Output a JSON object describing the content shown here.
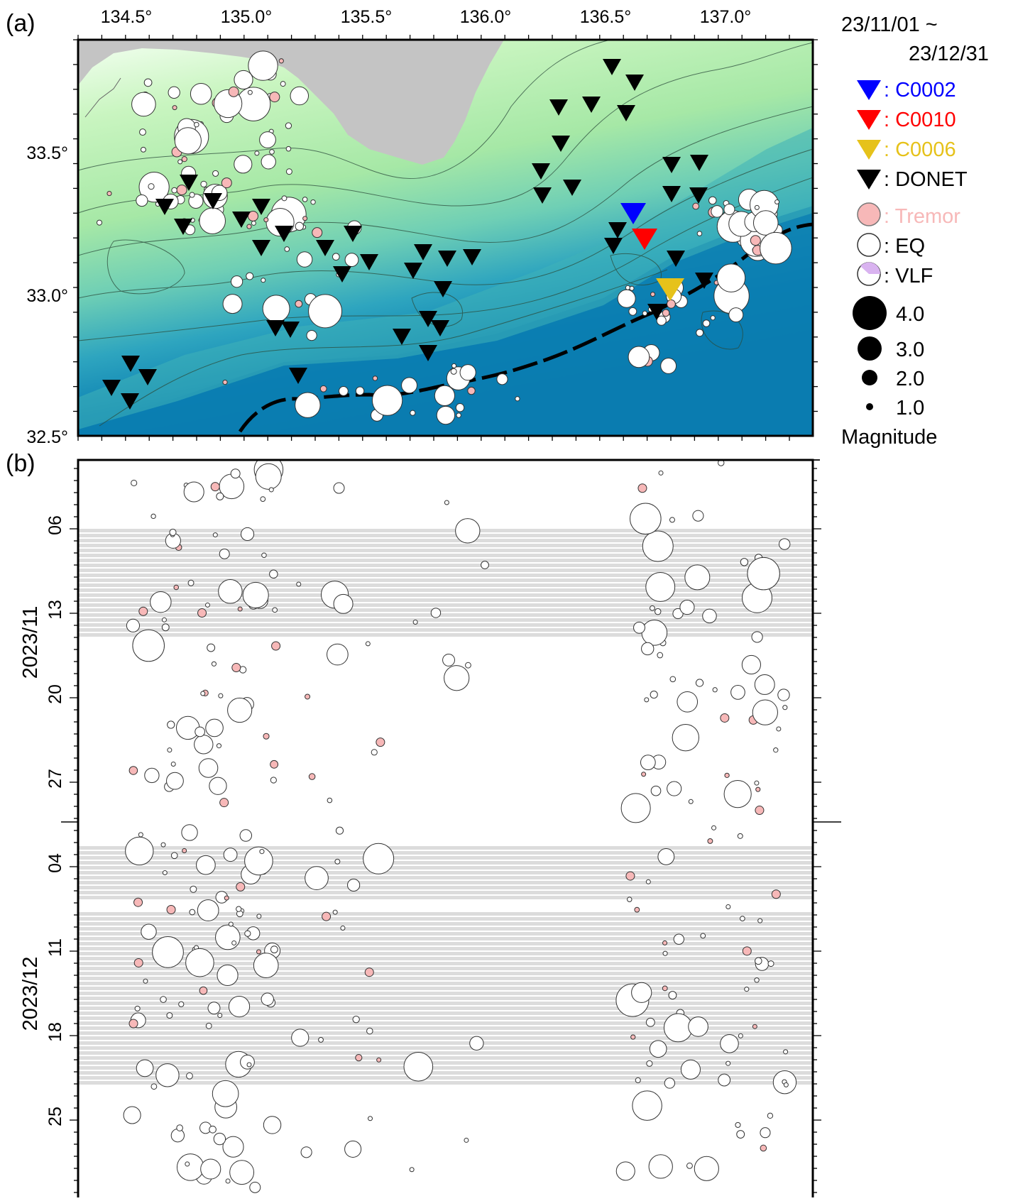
{
  "panel_a": {
    "label": "(a)",
    "lon_ticks": [
      "134.5°",
      "135.0°",
      "135.5°",
      "136.0°",
      "136.5°",
      "137.0°"
    ],
    "lat_ticks": [
      "33.5°",
      "33.0°",
      "32.5°"
    ]
  },
  "panel_b": {
    "label": "(b)",
    "month_labels": [
      "2023/11",
      "2023/12"
    ],
    "day_ticks": [
      "06",
      "13",
      "20",
      "27",
      "04",
      "11",
      "18",
      "25"
    ]
  },
  "legend": {
    "period_line1": "23/11/01 ~",
    "period_line2": "23/12/31",
    "stations": [
      {
        "name": ": C0002",
        "color": "#0000ff"
      },
      {
        "name": ": C0010",
        "color": "#ff0000"
      },
      {
        "name": ": C0006",
        "color": "#e6c21a"
      },
      {
        "name": ": DONET",
        "color": "#000000"
      }
    ],
    "event_types": [
      {
        "name": ": Tremor",
        "color": "#f7b8b8",
        "text_color": "#f7b8b8"
      },
      {
        "name": ": EQ",
        "color": "#ffffff",
        "text_color": "#000000"
      },
      {
        "name": ": VLF",
        "color": "#d9b3f0",
        "text_color": "#000000"
      }
    ],
    "magnitudes": [
      "4.0",
      "3.0",
      "2.0",
      "1.0"
    ],
    "magnitude_title": "Magnitude"
  },
  "colors": {
    "land": "#c4c4c4",
    "shallow": "#b8f0b0",
    "deep": "#0a7fb0",
    "gap_band": "#dcdcdc",
    "tremor": "#f7b8b8"
  }
}
